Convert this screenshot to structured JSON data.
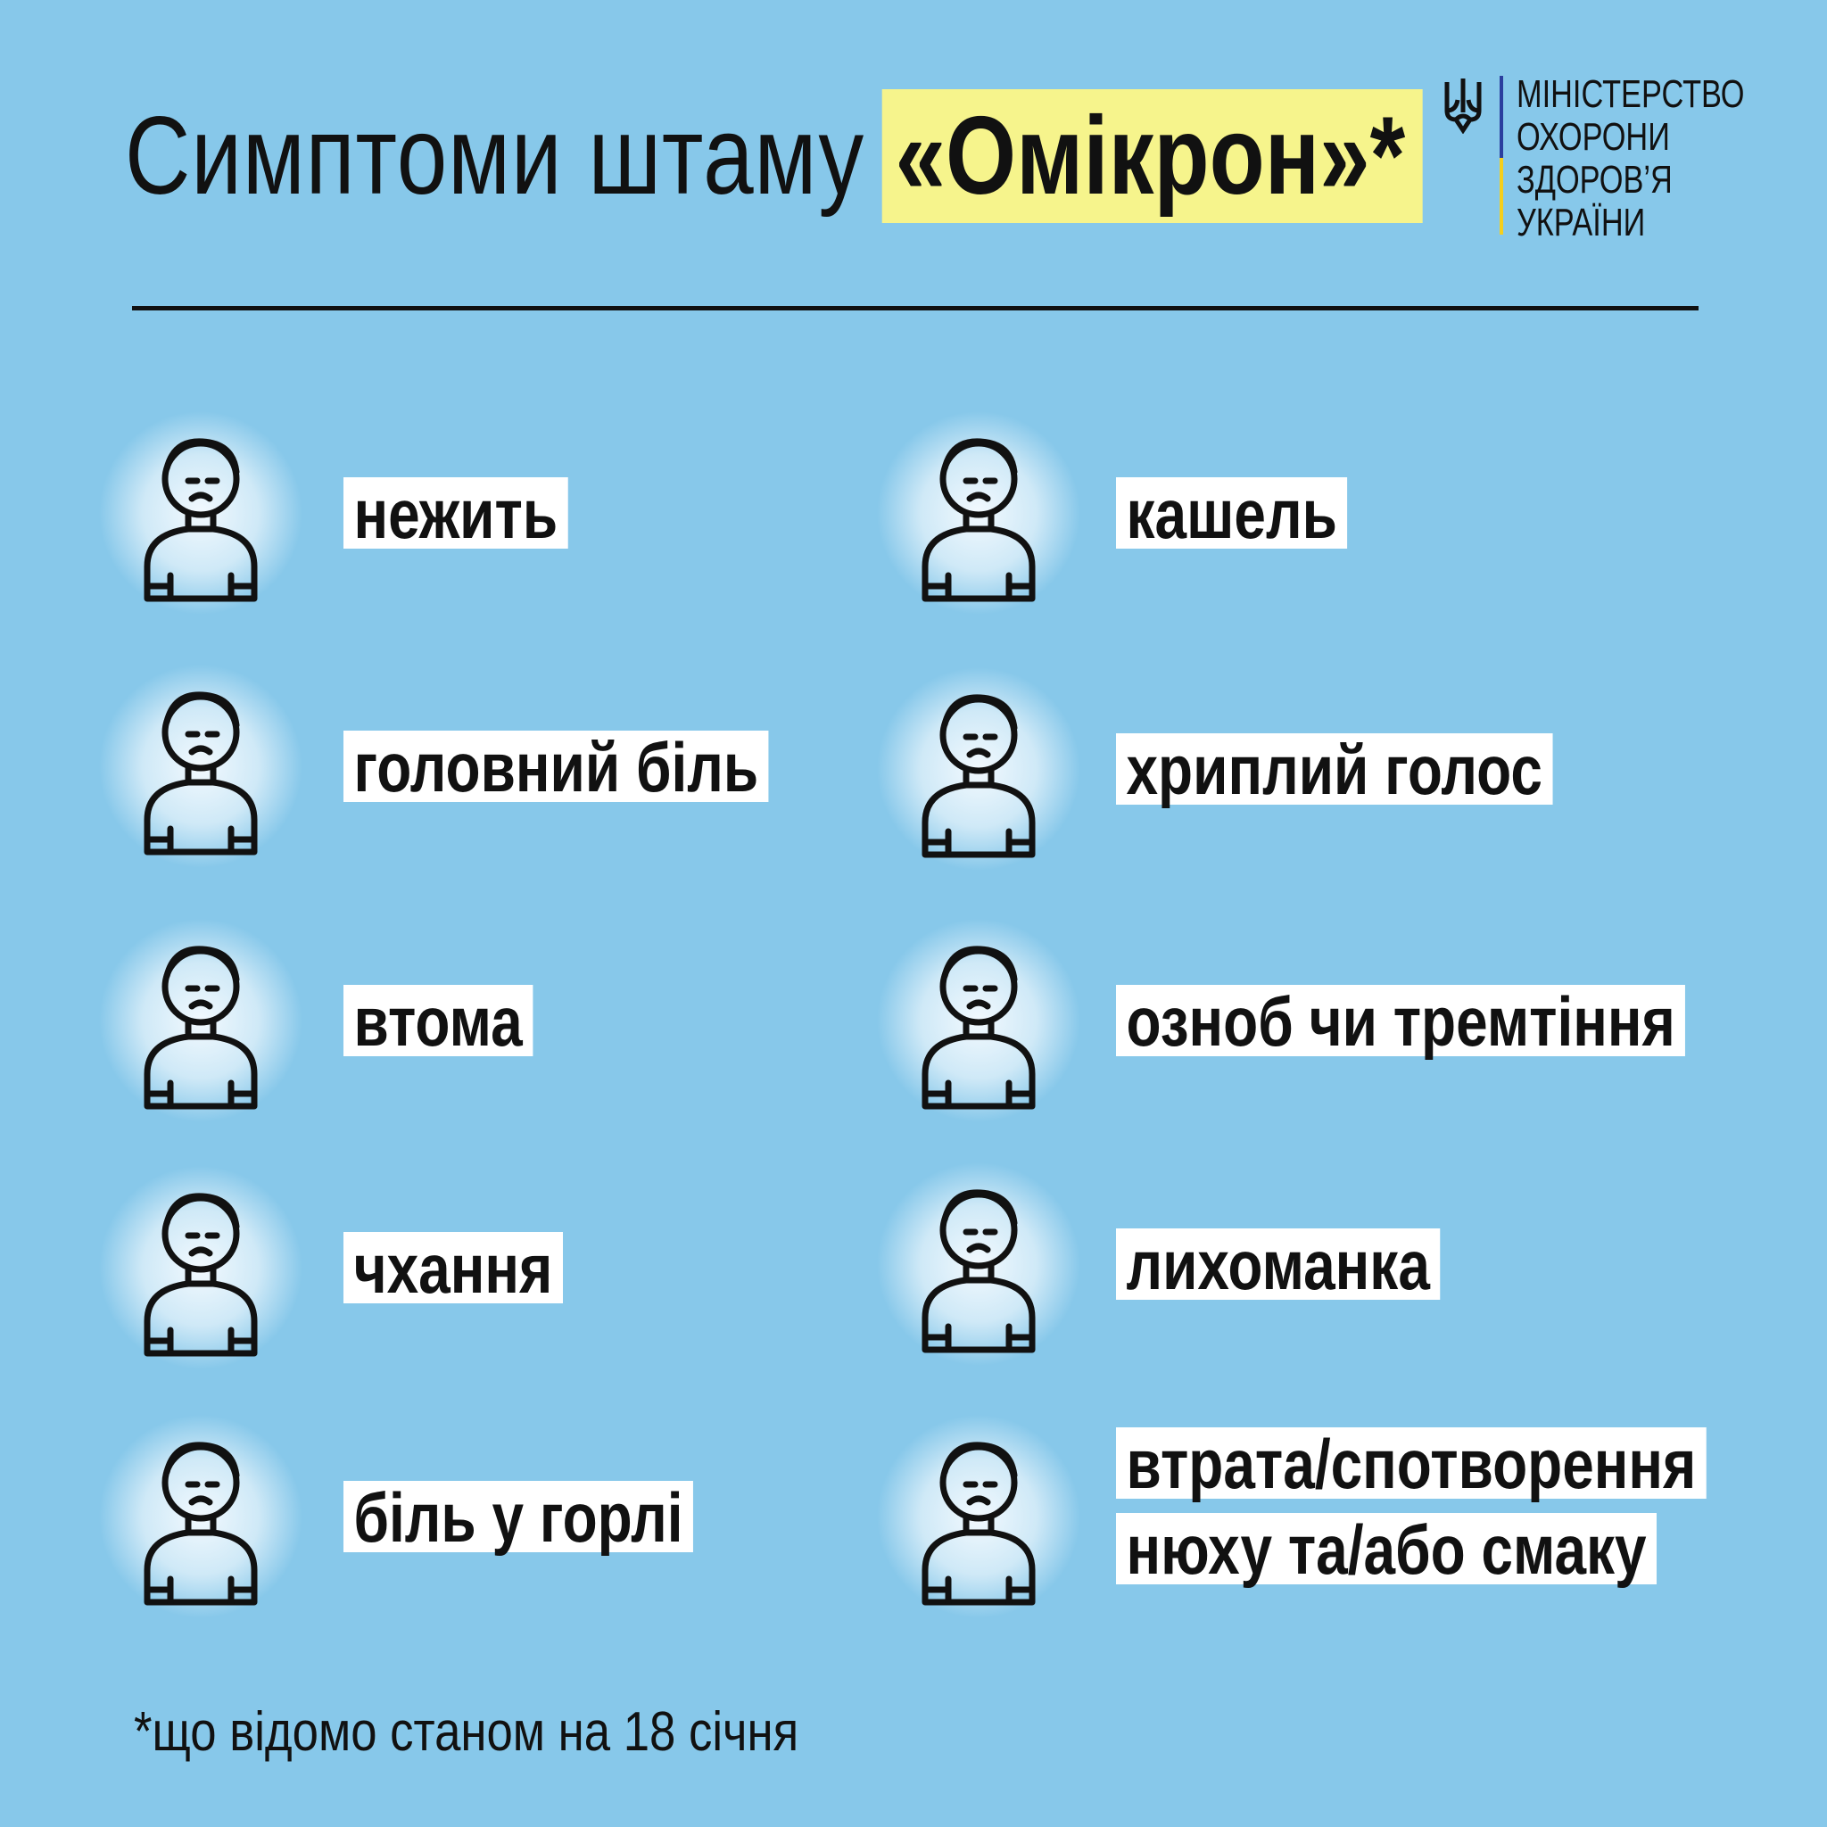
{
  "header": {
    "title_plain": "Симптоми штаму",
    "title_highlight": "«Омікрон»*",
    "highlight_color": "#f6f48c",
    "background_color": "#87c8ea"
  },
  "logo": {
    "lines": [
      "МІНІСТЕРСТВО",
      "ОХОРОНИ",
      "ЗДОРОВ’Я",
      "УКРАЇНИ"
    ],
    "icon": "trident-icon"
  },
  "symptoms_left": [
    {
      "label": "нежить",
      "icon": "runny-nose-icon"
    },
    {
      "label": "головний біль",
      "icon": "headache-icon"
    },
    {
      "label": "втома",
      "icon": "fatigue-icon"
    },
    {
      "label": "чхання",
      "icon": "sneezing-icon"
    },
    {
      "label": "біль у горлі",
      "icon": "sore-throat-icon"
    }
  ],
  "symptoms_right": [
    {
      "label": "кашель",
      "icon": "cough-icon"
    },
    {
      "label": "хриплий голос",
      "icon": "hoarse-voice-icon"
    },
    {
      "label": "озноб чи тремтіння",
      "icon": "chills-icon"
    },
    {
      "label": "лихоманка",
      "icon": "fever-icon"
    },
    {
      "label_lines": [
        "втрата/спотворення",
        "нюху та/або смаку"
      ],
      "icon": "loss-of-smell-taste-icon"
    }
  ],
  "footnote": "*що відомо станом на 18 січня"
}
